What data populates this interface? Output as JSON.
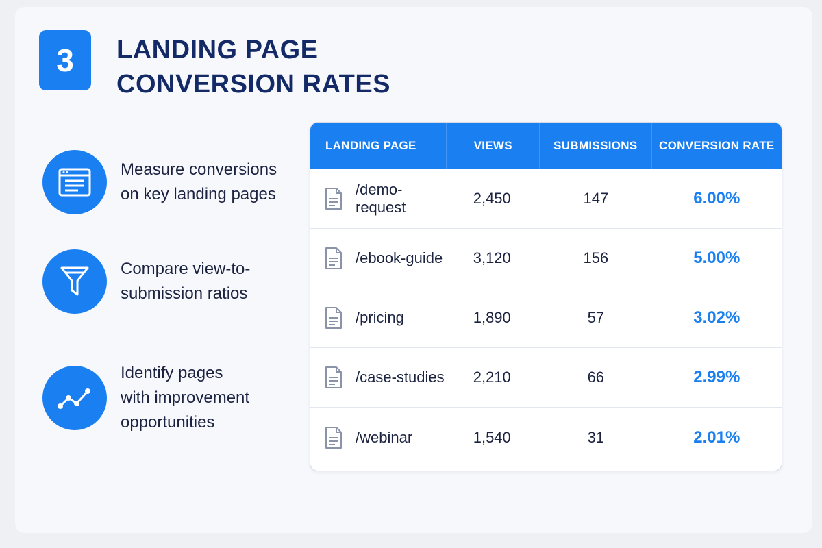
{
  "header": {
    "step_number": "3",
    "title_line1": "LANDING PAGE",
    "title_line2": "CONVERSION RATES"
  },
  "features": [
    {
      "icon": "browser-window-icon",
      "line1": "Measure conversions",
      "line2": "on key landing pages",
      "line3": ""
    },
    {
      "icon": "funnel-icon",
      "line1": "Compare view-to-",
      "line2": "submission ratios",
      "line3": ""
    },
    {
      "icon": "trend-line-icon",
      "line1": "Identify pages",
      "line2": "with improvement",
      "line3": "opportunities"
    }
  ],
  "table": {
    "headers": [
      "LANDING PAGE",
      "VIEWS",
      "SUBMISSIONS",
      "CONVERSION RATE"
    ],
    "rows": [
      {
        "page": "/demo-request",
        "views": "2,450",
        "submissions": "147",
        "rate": "6.00%"
      },
      {
        "page": "/ebook-guide",
        "views": "3,120",
        "submissions": "156",
        "rate": "5.00%"
      },
      {
        "page": "/pricing",
        "views": "1,890",
        "submissions": "57",
        "rate": "3.02%"
      },
      {
        "page": "/case-studies",
        "views": "2,210",
        "submissions": "66",
        "rate": "2.99%"
      },
      {
        "page": "/webinar",
        "views": "1,540",
        "submissions": "31",
        "rate": "2.01%"
      }
    ]
  },
  "colors": {
    "accent": "#1a7ff0",
    "title": "#132a66",
    "text": "#1b2340"
  }
}
